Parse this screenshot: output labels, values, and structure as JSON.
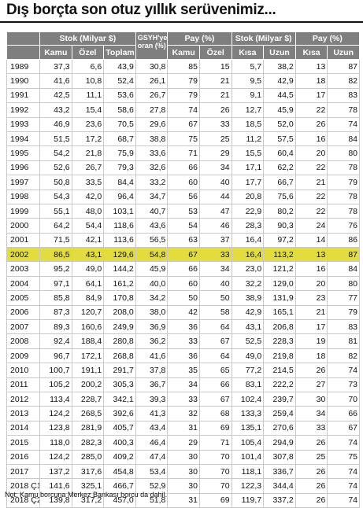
{
  "title": "Dış borçta son otuz yıllık serüvenimiz...",
  "headers": {
    "stok": "Stok (Milyar $)",
    "gsyh_line1": "GSYH'ye",
    "gsyh_line2": "oran (%)",
    "pay1": "Pay (%)",
    "stok2": "Stok (Milyar $)",
    "pay2": "Pay (%)",
    "sub": [
      "Kamu",
      "Özel",
      "Toplam",
      "Kamu",
      "Özel",
      "Kısa",
      "Uzun",
      "Kısa",
      "Uzun"
    ]
  },
  "highlight_row": "2002",
  "rows": [
    [
      "1989",
      "37,3",
      "6,6",
      "43,9",
      "30,8",
      "85",
      "15",
      "5,7",
      "38,2",
      "13",
      "87"
    ],
    [
      "1990",
      "41,6",
      "10,8",
      "52,4",
      "26,1",
      "79",
      "21",
      "9,5",
      "42,9",
      "18",
      "82"
    ],
    [
      "1991",
      "42,5",
      "11,1",
      "53,6",
      "26,7",
      "79",
      "21",
      "9,1",
      "44,5",
      "17",
      "83"
    ],
    [
      "1992",
      "43,2",
      "15,4",
      "58,6",
      "27,8",
      "74",
      "26",
      "12,7",
      "45,9",
      "22",
      "78"
    ],
    [
      "1993",
      "46,9",
      "23,6",
      "70,5",
      "29,6",
      "67",
      "33",
      "18,5",
      "52,0",
      "26",
      "74"
    ],
    [
      "1994",
      "51,5",
      "17,2",
      "68,7",
      "38,8",
      "75",
      "25",
      "11,2",
      "57,5",
      "16",
      "84"
    ],
    [
      "1995",
      "54,2",
      "21,8",
      "75,9",
      "33,6",
      "71",
      "29",
      "15,5",
      "60,4",
      "20",
      "80"
    ],
    [
      "1996",
      "52,6",
      "26,7",
      "79,3",
      "32,6",
      "66",
      "34",
      "17,1",
      "62,2",
      "22",
      "78"
    ],
    [
      "1997",
      "50,8",
      "33,5",
      "84,4",
      "33,2",
      "60",
      "40",
      "17,7",
      "66,7",
      "21",
      "79"
    ],
    [
      "1998",
      "54,3",
      "42,0",
      "96,4",
      "34,7",
      "56",
      "44",
      "20,8",
      "75,6",
      "22",
      "78"
    ],
    [
      "1999",
      "55,1",
      "48,0",
      "103,1",
      "40,7",
      "53",
      "47",
      "22,9",
      "80,2",
      "22",
      "78"
    ],
    [
      "2000",
      "64,2",
      "54,4",
      "118,6",
      "43,6",
      "54",
      "46",
      "28,3",
      "90,3",
      "24",
      "76"
    ],
    [
      "2001",
      "71,5",
      "42,1",
      "113,6",
      "56,5",
      "63",
      "37",
      "16,4",
      "97,2",
      "14",
      "86"
    ],
    [
      "2002",
      "86,5",
      "43,1",
      "129,6",
      "54,8",
      "67",
      "33",
      "16,4",
      "113,2",
      "13",
      "87"
    ],
    [
      "2003",
      "95,2",
      "49,0",
      "144,2",
      "45,9",
      "66",
      "34",
      "23,0",
      "121,2",
      "16",
      "84"
    ],
    [
      "2004",
      "97,1",
      "64,1",
      "161,2",
      "40,0",
      "60",
      "40",
      "32,2",
      "129,0",
      "20",
      "80"
    ],
    [
      "2005",
      "85,8",
      "84,9",
      "170,8",
      "34,2",
      "50",
      "50",
      "38,9",
      "131,9",
      "23",
      "77"
    ],
    [
      "2006",
      "87,3",
      "120,7",
      "208,0",
      "38,0",
      "42",
      "58",
      "42,9",
      "165,1",
      "21",
      "79"
    ],
    [
      "2007",
      "89,3",
      "160,6",
      "249,9",
      "36,9",
      "36",
      "64",
      "43,1",
      "206,8",
      "17",
      "83"
    ],
    [
      "2008",
      "92,4",
      "188,4",
      "280,8",
      "36,2",
      "33",
      "67",
      "52,5",
      "228,3",
      "19",
      "81"
    ],
    [
      "2009",
      "96,7",
      "172,1",
      "268,8",
      "41,6",
      "36",
      "64",
      "49,0",
      "219,8",
      "18",
      "82"
    ],
    [
      "2010",
      "100,7",
      "191,1",
      "291,7",
      "37,8",
      "35",
      "65",
      "77,2",
      "214,5",
      "26",
      "74"
    ],
    [
      "2011",
      "105,2",
      "200,2",
      "305,3",
      "36,7",
      "34",
      "66",
      "83,1",
      "222,2",
      "27",
      "73"
    ],
    [
      "2012",
      "113,4",
      "228,7",
      "342,1",
      "39,3",
      "33",
      "67",
      "102,4",
      "239,7",
      "30",
      "70"
    ],
    [
      "2013",
      "124,2",
      "268,5",
      "392,6",
      "41,3",
      "32",
      "68",
      "133,3",
      "259,4",
      "34",
      "66"
    ],
    [
      "2014",
      "123,8",
      "281,9",
      "405,7",
      "43,4",
      "31",
      "69",
      "135,1",
      "270,6",
      "33",
      "67"
    ],
    [
      "2015",
      "118,0",
      "282,3",
      "400,3",
      "46,4",
      "29",
      "71",
      "105,4",
      "294,9",
      "26",
      "74"
    ],
    [
      "2016",
      "124,2",
      "285,0",
      "409,2",
      "47,4",
      "30",
      "70",
      "101,4",
      "307,8",
      "25",
      "75"
    ],
    [
      "2017",
      "137,2",
      "317,6",
      "454,8",
      "53,4",
      "30",
      "70",
      "118,1",
      "336,7",
      "26",
      "74"
    ],
    [
      "2018 Ç1",
      "141,6",
      "325,1",
      "466,7",
      "52,9",
      "30",
      "70",
      "122,3",
      "344,4",
      "26",
      "74"
    ],
    [
      "2018 Ç2",
      "139,8",
      "317,2",
      "457,0",
      "51,8",
      "31",
      "69",
      "119,7",
      "337,2",
      "26",
      "74"
    ]
  ],
  "note": "Not: Kamu borcuna Merkez Bankası borcu da dahil."
}
